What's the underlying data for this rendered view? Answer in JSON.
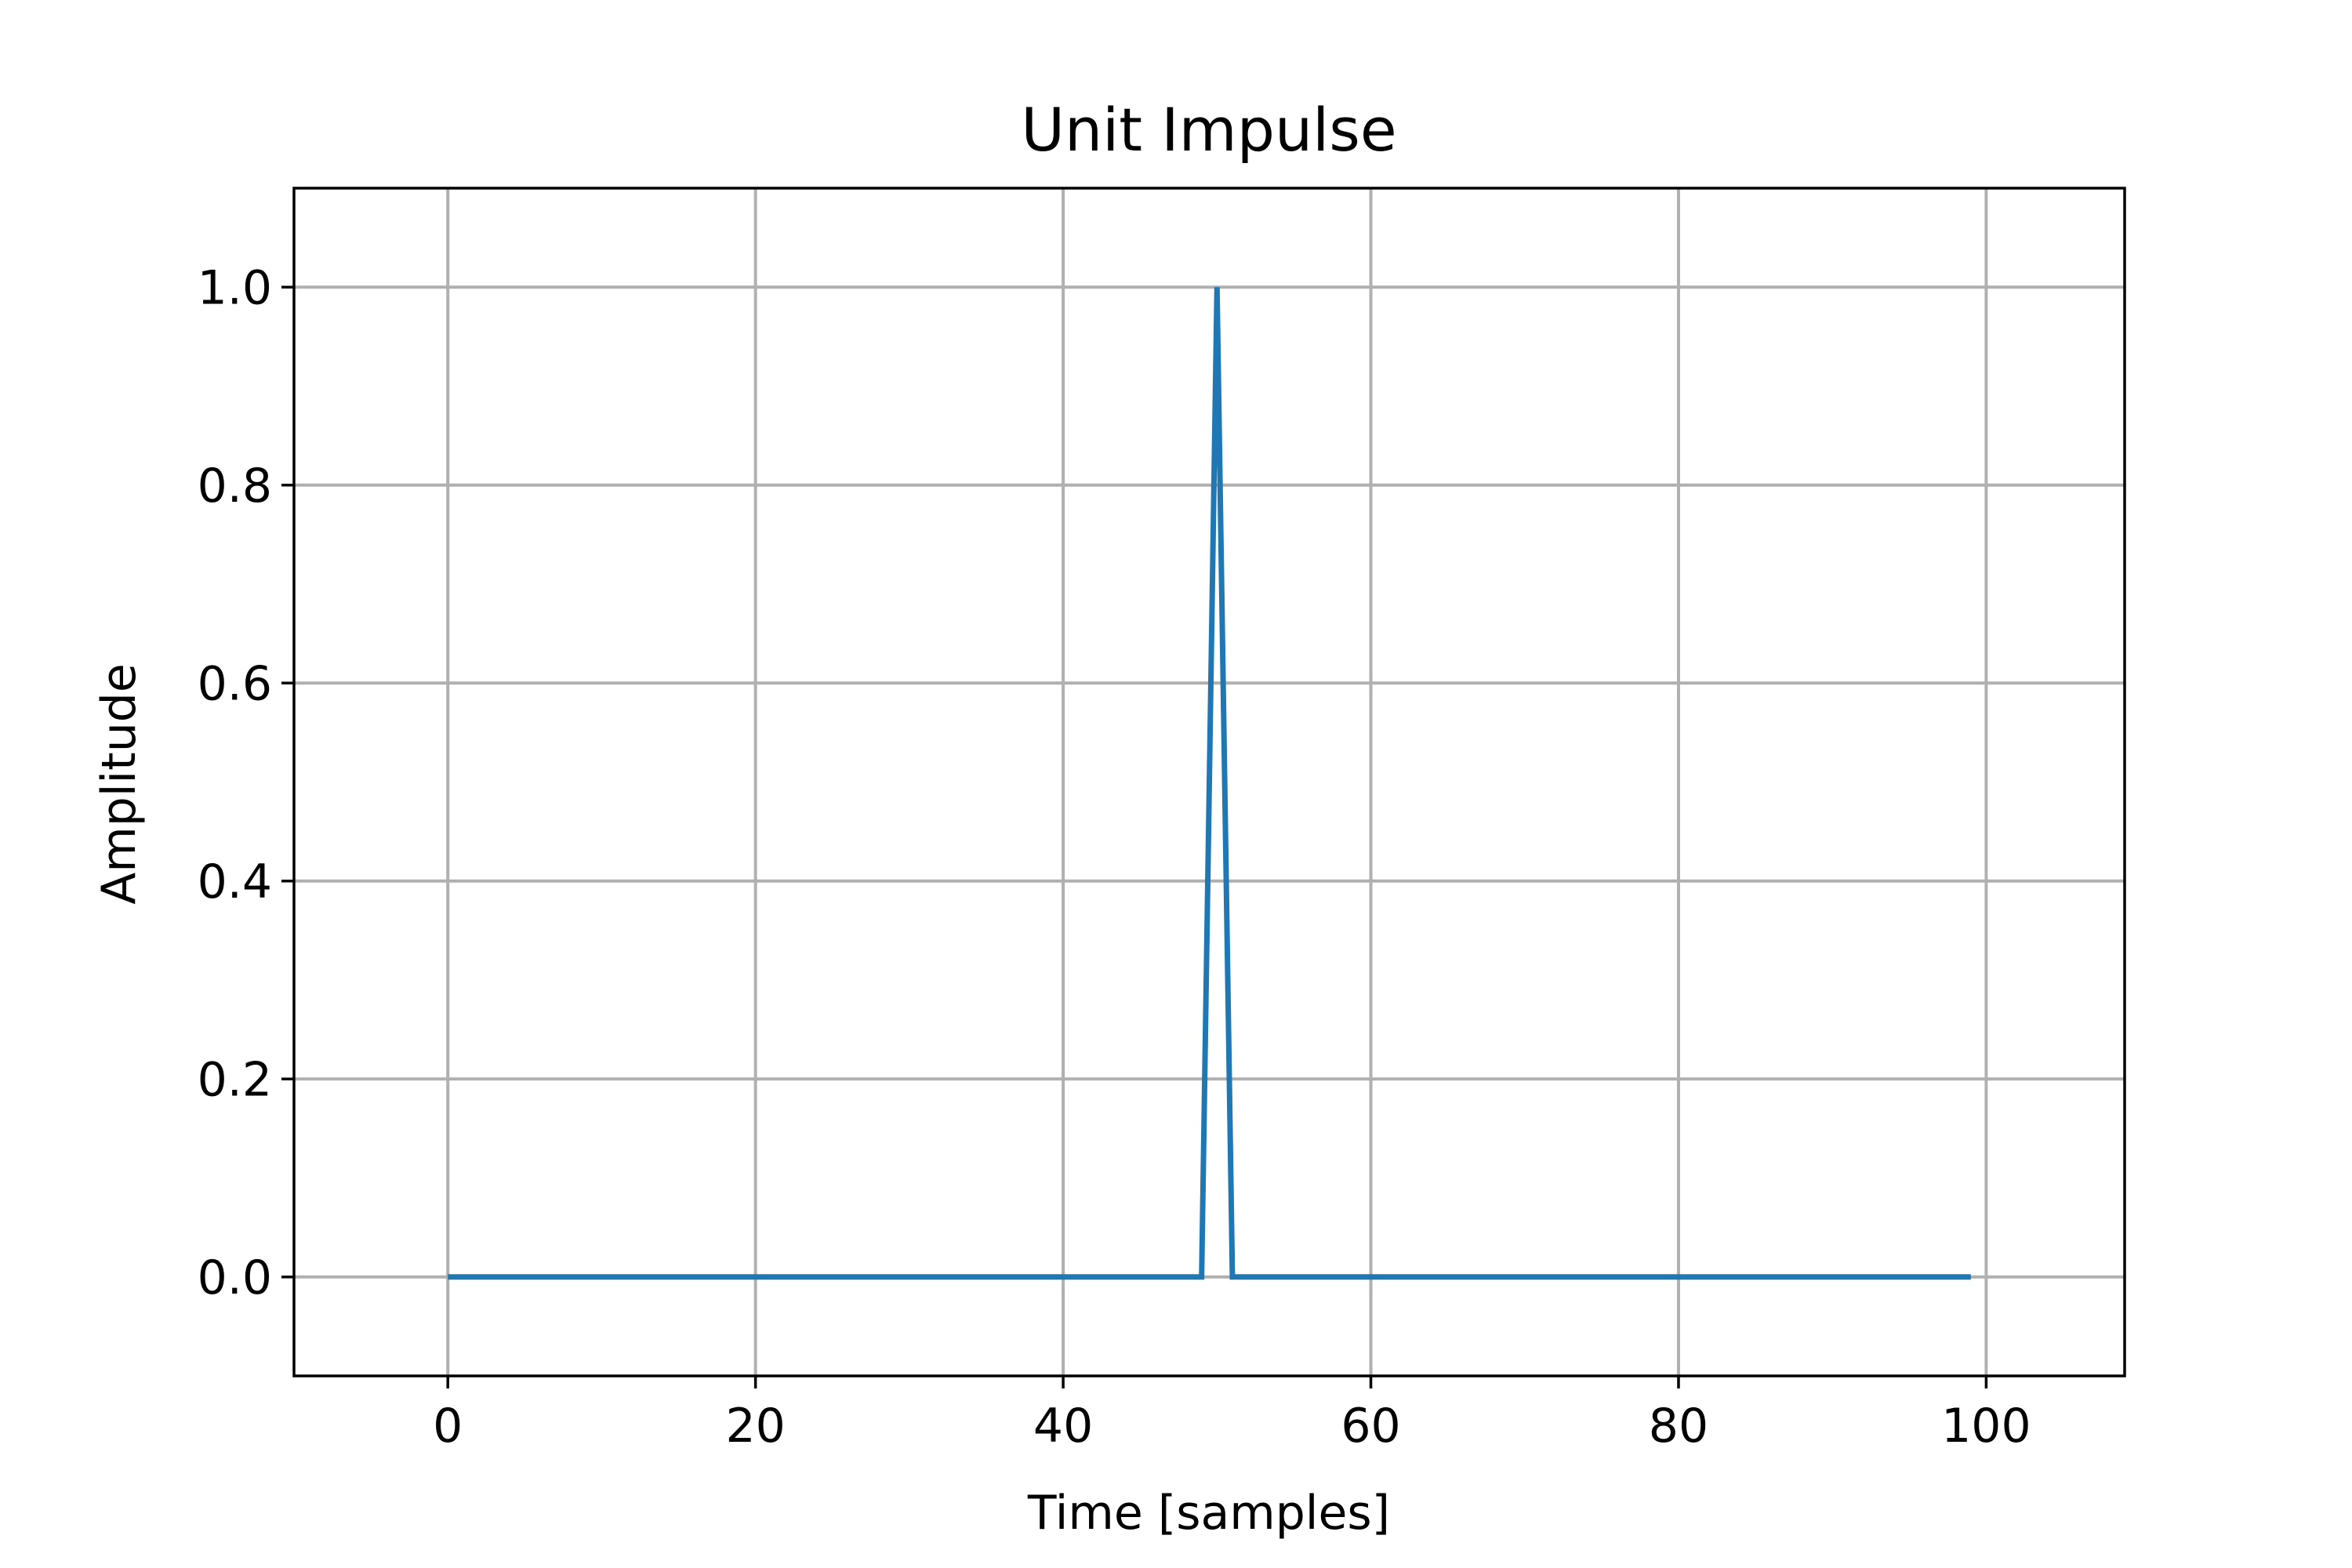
{
  "chart_data": {
    "type": "line",
    "title": "Unit Impulse",
    "xlabel": "Time [samples]",
    "ylabel": "Amplitude",
    "xlim": [
      -10,
      109
    ],
    "ylim": [
      -0.1,
      1.1
    ],
    "xticks": [
      0,
      20,
      40,
      60,
      80,
      100
    ],
    "yticks": [
      0.0,
      0.2,
      0.4,
      0.6,
      0.8,
      1.0
    ],
    "xtick_labels": [
      "0",
      "20",
      "40",
      "60",
      "80",
      "100"
    ],
    "ytick_labels": [
      "0.0",
      "0.2",
      "0.4",
      "0.6",
      "0.8",
      "1.0"
    ],
    "grid": true,
    "legend": false,
    "series": [
      {
        "color": "#1f77b4",
        "x": [
          0,
          49,
          50,
          51,
          99
        ],
        "y": [
          0.0,
          0.0,
          1.0,
          0.0,
          0.0
        ]
      }
    ]
  }
}
